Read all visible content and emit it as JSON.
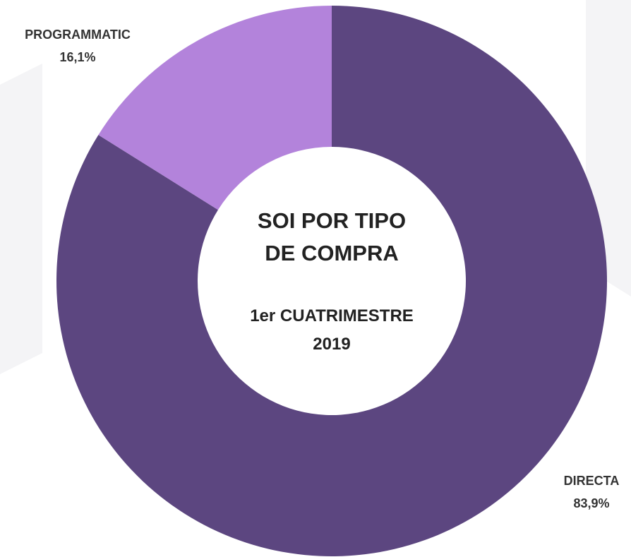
{
  "chart_data": {
    "type": "donut",
    "title": "SOI POR TIPO DE COMPRA",
    "subtitle": "1er CUATRIMESTRE 2019",
    "categories": [
      "DIRECTA",
      "PROGRAMMATIC"
    ],
    "values": [
      83.9,
      16.1
    ],
    "value_labels": [
      "83,9%",
      "16,1%"
    ],
    "colors": [
      "#5c4680",
      "#b383db"
    ]
  }
}
